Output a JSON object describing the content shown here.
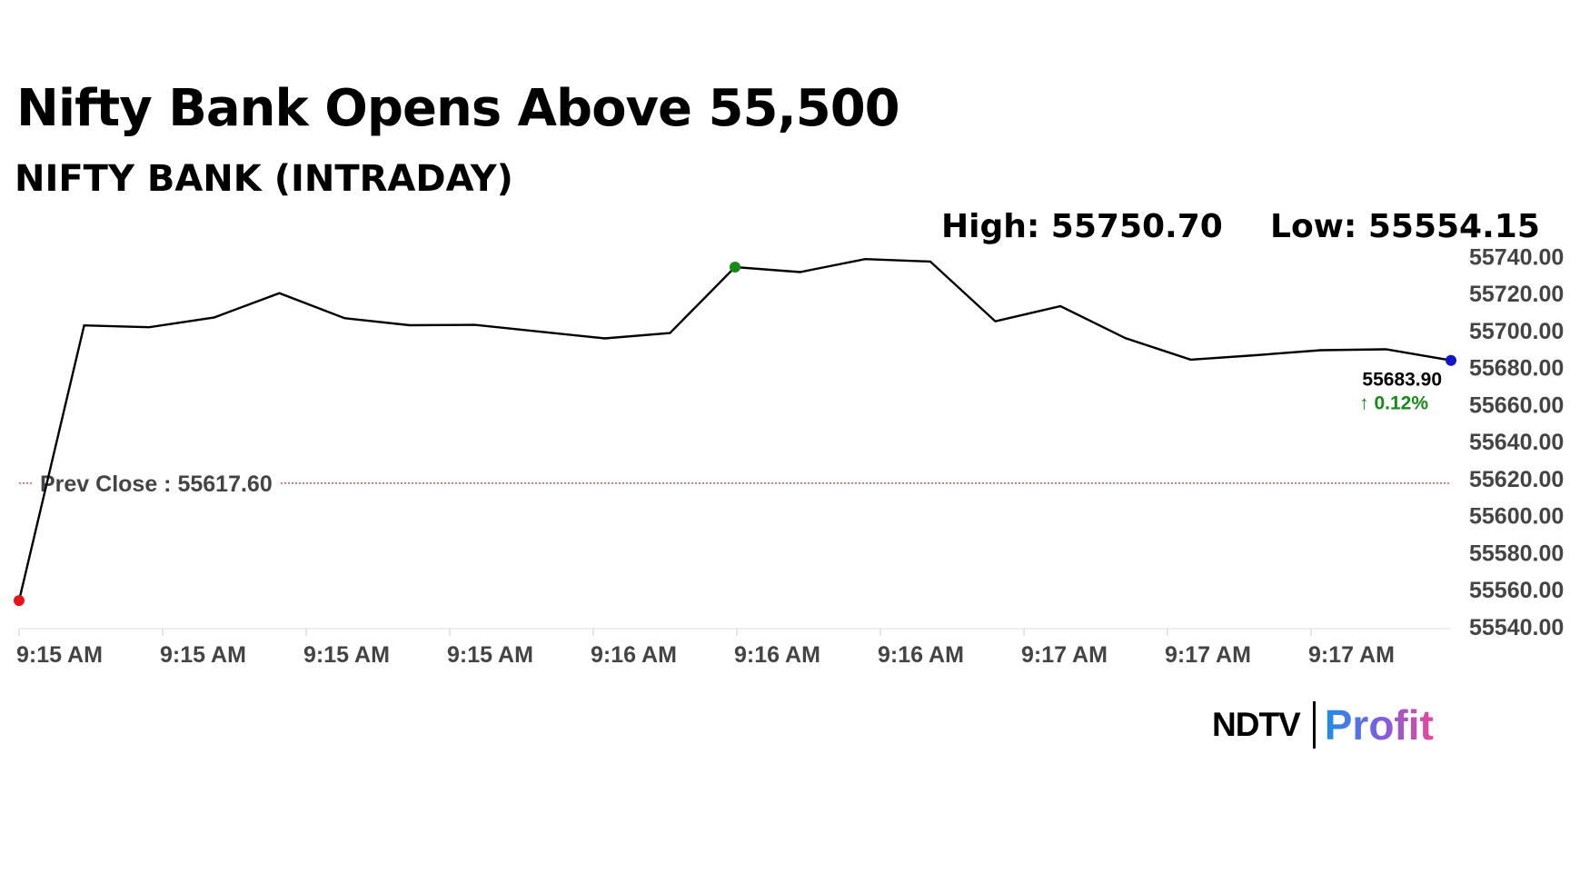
{
  "headline": "Nifty Bank Opens Above 55,500",
  "subhead": "NIFTY BANK (INTRADAY)",
  "high_text": "High: 55750.70",
  "low_text": "Low: 55554.15",
  "logo": {
    "ndtv": "NDTV",
    "profit": "Profit"
  },
  "colors": {
    "line": "#000000",
    "start_marker": "#e8141a",
    "high_marker": "#178a17",
    "last_marker": "#1414c8",
    "prev_close_line": "#c0392b",
    "change_up": "#178a17",
    "axis_text": "#444444"
  },
  "chart_data": {
    "type": "line",
    "ylim": [
      55540,
      55750
    ],
    "y_ticks": [
      "55540.00",
      "55560.00",
      "55580.00",
      "55600.00",
      "55620.00",
      "55640.00",
      "55660.00",
      "55680.00",
      "55700.00",
      "55720.00",
      "55740.00"
    ],
    "y_tick_values": [
      55540,
      55560,
      55580,
      55600,
      55620,
      55640,
      55660,
      55680,
      55700,
      55720,
      55740
    ],
    "x_tick_labels": [
      "9:15 AM",
      "9:15 AM",
      "9:15 AM",
      "9:15 AM",
      "9:16 AM",
      "9:16 AM",
      "9:16 AM",
      "9:17 AM",
      "9:17 AM",
      "9:17 AM"
    ],
    "y_axis_position": "right",
    "grid": false,
    "series": [
      {
        "values": [
          55554.15,
          55702.8,
          55701.8,
          55707.1,
          55720.2,
          55706.7,
          55702.9,
          55703.1,
          55699.4,
          55695.8,
          55698.7,
          55734.3,
          55731.6,
          55738.6,
          55737.3,
          55705.0,
          55713.2,
          55695.9,
          55684.3,
          55686.7,
          55689.4,
          55689.9,
          55683.9
        ]
      }
    ],
    "prev_close": {
      "label": "Prev Close : 55617.60",
      "value": 55617.6
    },
    "high_point_index": 11,
    "last": {
      "value_label": "55683.90",
      "change_label": "0.12%",
      "direction": "up"
    }
  }
}
